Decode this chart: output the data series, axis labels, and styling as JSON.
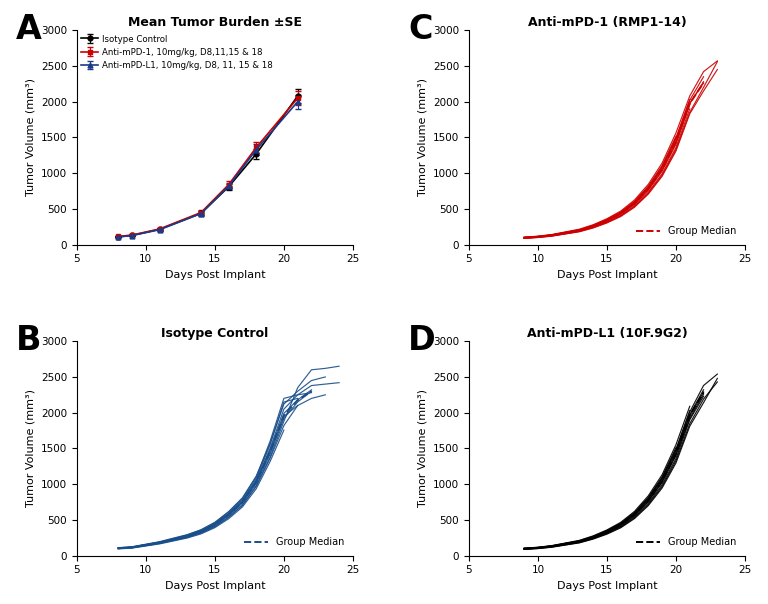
{
  "panel_A": {
    "title": "Mean Tumor Burden ±SE",
    "xlabel": "Days Post Implant",
    "ylabel": "Tumor Volume (mm³)",
    "xlim": [
      5,
      25
    ],
    "ylim": [
      0,
      3000
    ],
    "xticks": [
      5,
      10,
      15,
      20,
      25
    ],
    "yticks": [
      0,
      500,
      1000,
      1500,
      2000,
      2500,
      3000
    ],
    "days": [
      8,
      9,
      11,
      14,
      16,
      18,
      21
    ],
    "isotype": [
      110,
      130,
      215,
      440,
      810,
      1270,
      2080
    ],
    "isotype_se": [
      8,
      10,
      18,
      30,
      45,
      75,
      100
    ],
    "pd1": [
      115,
      135,
      220,
      450,
      840,
      1360,
      2050
    ],
    "pd1_se": [
      9,
      11,
      20,
      35,
      50,
      80,
      95
    ],
    "pdl1": [
      108,
      128,
      210,
      435,
      820,
      1330,
      2000
    ],
    "pdl1_se": [
      7,
      9,
      17,
      32,
      47,
      78,
      98
    ],
    "legend": [
      "Isotype Control",
      "Anti-mPD-1, 10mg/kg, D8,11,15 & 18",
      "Anti-mPD-L1, 10mg/kg, D8, 11, 15 & 18"
    ],
    "colors": [
      "#000000",
      "#cc0000",
      "#1a3a8a"
    ]
  },
  "panel_B": {
    "title": "Isotype Control",
    "xlabel": "Days Post Implant",
    "ylabel": "Tumor Volume (mm³)",
    "xlim": [
      5,
      25
    ],
    "ylim": [
      0,
      3000
    ],
    "xticks": [
      5,
      10,
      15,
      20,
      25
    ],
    "yticks": [
      0,
      500,
      1000,
      1500,
      2000,
      2500,
      3000
    ],
    "color": "#1a4e8a",
    "median_label": "Group Median",
    "individual_curves": [
      [
        8,
        9,
        11,
        13,
        14,
        15,
        16,
        17,
        18,
        19,
        20,
        21,
        22,
        23,
        24
      ],
      [
        8,
        9,
        11,
        13,
        14,
        15,
        16,
        17,
        18,
        19,
        20,
        21,
        22,
        23,
        24
      ],
      [
        8,
        9,
        11,
        13,
        14,
        15,
        16,
        17,
        18,
        19,
        20,
        21,
        22
      ],
      [
        8,
        9,
        11,
        13,
        14,
        15,
        16,
        17,
        18,
        19,
        20,
        21
      ],
      [
        8,
        9,
        11,
        13,
        14,
        15,
        16,
        17,
        18,
        19,
        20,
        21,
        22,
        23
      ],
      [
        8,
        9,
        11,
        13,
        14,
        15,
        16,
        17,
        18,
        19,
        20,
        21,
        22
      ],
      [
        8,
        9,
        11,
        13,
        14,
        15,
        16,
        17,
        18,
        19,
        20,
        21,
        22
      ],
      [
        8,
        9,
        11,
        13,
        14,
        15,
        16,
        17,
        18,
        19,
        20
      ],
      [
        8,
        9,
        11,
        13,
        14,
        15,
        16,
        17,
        18,
        19,
        20,
        21,
        22,
        23
      ],
      [
        8,
        9,
        11,
        13,
        14,
        15,
        16,
        17,
        18,
        19,
        20,
        21
      ]
    ],
    "individual_values": [
      [
        100,
        112,
        175,
        260,
        320,
        410,
        540,
        710,
        980,
        1380,
        1880,
        2350,
        2600,
        2620,
        2650
      ],
      [
        105,
        118,
        185,
        275,
        340,
        440,
        580,
        760,
        1050,
        1500,
        2050,
        2250,
        2380,
        2400,
        2420
      ],
      [
        110,
        122,
        192,
        290,
        360,
        460,
        610,
        800,
        1100,
        1600,
        2200,
        2250,
        2280
      ],
      [
        108,
        120,
        188,
        283,
        350,
        450,
        595,
        780,
        1075,
        1550,
        2150,
        2200
      ],
      [
        98,
        110,
        170,
        255,
        315,
        405,
        535,
        705,
        970,
        1360,
        1820,
        2100,
        2200,
        2250
      ],
      [
        102,
        114,
        178,
        268,
        330,
        425,
        560,
        735,
        1010,
        1420,
        1920,
        2150,
        2300
      ],
      [
        106,
        118,
        184,
        276,
        342,
        440,
        580,
        762,
        1048,
        1478,
        1990,
        2180,
        2320
      ],
      [
        95,
        106,
        165,
        247,
        305,
        392,
        517,
        682,
        937,
        1316,
        1756
      ],
      [
        112,
        125,
        196,
        294,
        363,
        467,
        617,
        810,
        1115,
        1570,
        2120,
        2300,
        2450,
        2500
      ],
      [
        103,
        116,
        181,
        272,
        336,
        433,
        571,
        750,
        1031,
        1450,
        1950,
        2100
      ]
    ],
    "median_days": [
      8,
      9,
      11,
      13,
      14,
      15,
      16,
      17,
      18,
      19,
      20,
      21,
      22
    ],
    "median_values": [
      104,
      116,
      181,
      272,
      336,
      432,
      570,
      748,
      1030,
      1450,
      1960,
      2175,
      2300
    ]
  },
  "panel_C": {
    "title": "Anti-mPD-1 (RMP1-14)",
    "xlabel": "Days Post Implant",
    "ylabel": "Tumor Volume (mm³)",
    "xlim": [
      5,
      25
    ],
    "ylim": [
      0,
      3000
    ],
    "xticks": [
      5,
      10,
      15,
      20,
      25
    ],
    "yticks": [
      0,
      500,
      1000,
      1500,
      2000,
      2500,
      3000
    ],
    "color": "#cc0000",
    "median_label": "Group Median",
    "individual_curves": [
      [
        9,
        10,
        11,
        13,
        14,
        15,
        16,
        17,
        18,
        19,
        20,
        21
      ],
      [
        9,
        10,
        11,
        13,
        14,
        15,
        16,
        17,
        18,
        19,
        20,
        21,
        22
      ],
      [
        9,
        10,
        11,
        13,
        14,
        15,
        16,
        17,
        18,
        19,
        20,
        21,
        22,
        23
      ],
      [
        9,
        10,
        11,
        13,
        14,
        15,
        16,
        17,
        18,
        19,
        20,
        21,
        22,
        23
      ],
      [
        9,
        10,
        11,
        13,
        14,
        15,
        16,
        17,
        18,
        19,
        20,
        21
      ],
      [
        9,
        10,
        11,
        13,
        14,
        15,
        16,
        17,
        18,
        19,
        20,
        21,
        22
      ],
      [
        9,
        10,
        11,
        13,
        14,
        15,
        16,
        17,
        18,
        19,
        20
      ],
      [
        9,
        10,
        11,
        13,
        14,
        15,
        16,
        17,
        18,
        19,
        20,
        21,
        22,
        23
      ],
      [
        9,
        10,
        11,
        13,
        14,
        15,
        16,
        17,
        18,
        19,
        20,
        21,
        22
      ],
      [
        9,
        10,
        11,
        13,
        14,
        15,
        16,
        17,
        18,
        19,
        20,
        21
      ]
    ],
    "individual_values": [
      [
        95,
        108,
        128,
        195,
        252,
        328,
        424,
        564,
        762,
        1030,
        1405,
        1960
      ],
      [
        100,
        113,
        135,
        205,
        265,
        345,
        447,
        594,
        803,
        1085,
        1483,
        2020,
        2350
      ],
      [
        90,
        102,
        121,
        184,
        238,
        310,
        401,
        533,
        720,
        973,
        1330,
        1850,
        2200,
        2560
      ],
      [
        105,
        119,
        142,
        216,
        279,
        363,
        470,
        625,
        845,
        1142,
        1562,
        2080,
        2420,
        2570
      ],
      [
        92,
        104,
        124,
        188,
        243,
        316,
        409,
        544,
        735,
        993,
        1358,
        1900
      ],
      [
        98,
        111,
        132,
        201,
        260,
        338,
        437,
        581,
        785,
        1060,
        1450,
        1980,
        2260
      ],
      [
        103,
        116,
        138,
        210,
        271,
        353,
        457,
        607,
        820,
        1108,
        1516
      ],
      [
        88,
        100,
        119,
        181,
        234,
        304,
        394,
        524,
        708,
        957,
        1309,
        1830,
        2150,
        2450
      ],
      [
        96,
        109,
        130,
        198,
        256,
        333,
        431,
        573,
        774,
        1046,
        1431,
        1970,
        2280
      ],
      [
        101,
        114,
        136,
        207,
        267,
        348,
        450,
        598,
        808,
        1092,
        1493,
        2030
      ]
    ],
    "median_days": [
      9,
      10,
      11,
      13,
      14,
      15,
      16,
      17,
      18,
      19,
      20,
      21,
      22
    ],
    "median_values": [
      97,
      110,
      131,
      199,
      257,
      334,
      433,
      576,
      778,
      1051,
      1437,
      1975,
      2265
    ]
  },
  "panel_D": {
    "title": "Anti-mPD-L1 (10F.9G2)",
    "xlabel": "Days Post Implant",
    "ylabel": "Tumor Volume (mm³)",
    "xlim": [
      5,
      25
    ],
    "ylim": [
      0,
      3000
    ],
    "xticks": [
      5,
      10,
      15,
      20,
      25
    ],
    "yticks": [
      0,
      500,
      1000,
      1500,
      2000,
      2500,
      3000
    ],
    "color": "#000000",
    "median_label": "Group Median",
    "individual_curves": [
      [
        9,
        10,
        11,
        13,
        14,
        15,
        16,
        17,
        18,
        19,
        20,
        21,
        22
      ],
      [
        9,
        10,
        11,
        13,
        14,
        15,
        16,
        17,
        18,
        19,
        20,
        21,
        22,
        23
      ],
      [
        9,
        10,
        11,
        13,
        14,
        15,
        16,
        17,
        18,
        19,
        20,
        21,
        22,
        23
      ],
      [
        9,
        10,
        11,
        13,
        14,
        15,
        16,
        17,
        18,
        19,
        20,
        21
      ],
      [
        9,
        10,
        11,
        13,
        14,
        15,
        16,
        17,
        18,
        19,
        20,
        21,
        22
      ],
      [
        9,
        10,
        11,
        13,
        14,
        15,
        16,
        17,
        18,
        19,
        20,
        21,
        22
      ],
      [
        9,
        10,
        11,
        13,
        14,
        15,
        16,
        17,
        18,
        19,
        20
      ],
      [
        9,
        10,
        11,
        13,
        14,
        15,
        16,
        17,
        18,
        19,
        20,
        21,
        22,
        23
      ],
      [
        9,
        10,
        11,
        13,
        14,
        15,
        16,
        17,
        18,
        19,
        20,
        21,
        22
      ],
      [
        9,
        10,
        11,
        13,
        14,
        15,
        16,
        17,
        18,
        19,
        20,
        21
      ]
    ],
    "individual_values": [
      [
        95,
        107,
        128,
        194,
        251,
        326,
        422,
        561,
        758,
        1024,
        1399,
        1920,
        2260
      ],
      [
        100,
        113,
        135,
        205,
        265,
        344,
        446,
        593,
        801,
        1082,
        1480,
        2010,
        2380,
        2540
      ],
      [
        90,
        101,
        121,
        183,
        237,
        308,
        399,
        531,
        717,
        969,
        1326,
        1845,
        2190,
        2430
      ],
      [
        105,
        118,
        141,
        214,
        277,
        360,
        466,
        620,
        838,
        1133,
        1551,
        2090
      ],
      [
        92,
        104,
        124,
        188,
        243,
        316,
        409,
        544,
        735,
        993,
        1358,
        1900,
        2230
      ],
      [
        98,
        110,
        132,
        200,
        259,
        337,
        436,
        580,
        783,
        1058,
        1448,
        1975,
        2320
      ],
      [
        103,
        116,
        138,
        209,
        270,
        352,
        455,
        605,
        817,
        1104,
        1511
      ],
      [
        88,
        99,
        118,
        179,
        232,
        301,
        390,
        519,
        701,
        947,
        1296,
        1810,
        2140,
        2480
      ],
      [
        96,
        108,
        129,
        196,
        254,
        330,
        428,
        569,
        769,
        1039,
        1422,
        1955,
        2290
      ],
      [
        101,
        113,
        135,
        205,
        265,
        345,
        447,
        594,
        803,
        1085,
        1484,
        2030
      ]
    ],
    "median_days": [
      9,
      10,
      11,
      13,
      14,
      15,
      16,
      17,
      18,
      19,
      20,
      21,
      22
    ],
    "median_values": [
      97,
      109,
      130,
      197,
      255,
      331,
      429,
      570,
      770,
      1041,
      1425,
      1963,
      2285
    ]
  }
}
